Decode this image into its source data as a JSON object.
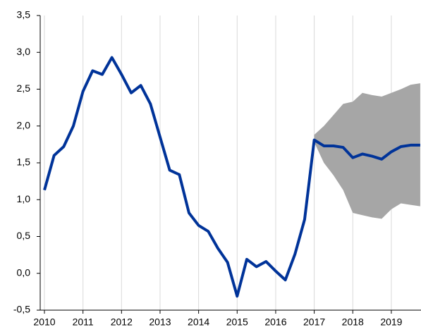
{
  "chart_data": {
    "type": "line",
    "x": [
      2010,
      2010.25,
      2010.5,
      2010.75,
      2011,
      2011.25,
      2011.5,
      2011.75,
      2012,
      2012.25,
      2012.5,
      2012.75,
      2013,
      2013.25,
      2013.5,
      2013.75,
      2014,
      2014.25,
      2014.5,
      2014.75,
      2015,
      2015.25,
      2015.5,
      2015.75,
      2016,
      2016.25,
      2016.5,
      2016.75,
      2017,
      2017.25,
      2017.5,
      2017.75,
      2018,
      2018.25,
      2018.5,
      2018.75,
      2019,
      2019.25,
      2019.5,
      2019.75
    ],
    "series": [
      {
        "color": "#003399",
        "values": [
          1.13,
          1.6,
          1.72,
          2.0,
          2.47,
          2.75,
          2.7,
          2.93,
          2.7,
          2.45,
          2.55,
          2.3,
          1.85,
          1.4,
          1.34,
          0.82,
          0.65,
          0.57,
          0.34,
          0.15,
          -0.31,
          0.19,
          0.09,
          0.16,
          0.03,
          -0.09,
          0.26,
          0.73,
          1.81,
          1.73,
          1.73,
          1.71,
          1.57,
          1.62,
          1.59,
          1.55,
          1.65,
          1.72,
          1.74,
          1.74
        ]
      }
    ],
    "band": {
      "color": "#a6a6a6",
      "x": [
        2017,
        2017.25,
        2017.5,
        2017.75,
        2018,
        2018.25,
        2018.5,
        2018.75,
        2019,
        2019.25,
        2019.5,
        2019.75
      ],
      "lower": [
        1.78,
        1.5,
        1.33,
        1.13,
        0.82,
        0.79,
        0.76,
        0.74,
        0.87,
        0.95,
        0.93,
        0.91
      ],
      "upper": [
        1.88,
        2.0,
        2.15,
        2.3,
        2.33,
        2.45,
        2.42,
        2.4,
        2.45,
        2.5,
        2.56,
        2.58
      ]
    },
    "xlim": [
      2009.89,
      2019.77
    ],
    "xticks": [
      2010,
      2011,
      2012,
      2013,
      2014,
      2015,
      2016,
      2017,
      2018,
      2019
    ],
    "ylim": [
      -0.5,
      3.5
    ],
    "yticks": [
      {
        "value": -0.5,
        "label": "-0,5"
      },
      {
        "value": 0,
        "label": "0,0"
      },
      {
        "value": 0.5,
        "label": "0,5"
      },
      {
        "value": 1,
        "label": "1,0"
      },
      {
        "value": 1.5,
        "label": "1,5"
      },
      {
        "value": 2,
        "label": "2,0"
      },
      {
        "value": 2.5,
        "label": "2,5"
      },
      {
        "value": 3,
        "label": "3,0"
      },
      {
        "value": 3.5,
        "label": "3,5"
      }
    ],
    "grid": "x"
  }
}
